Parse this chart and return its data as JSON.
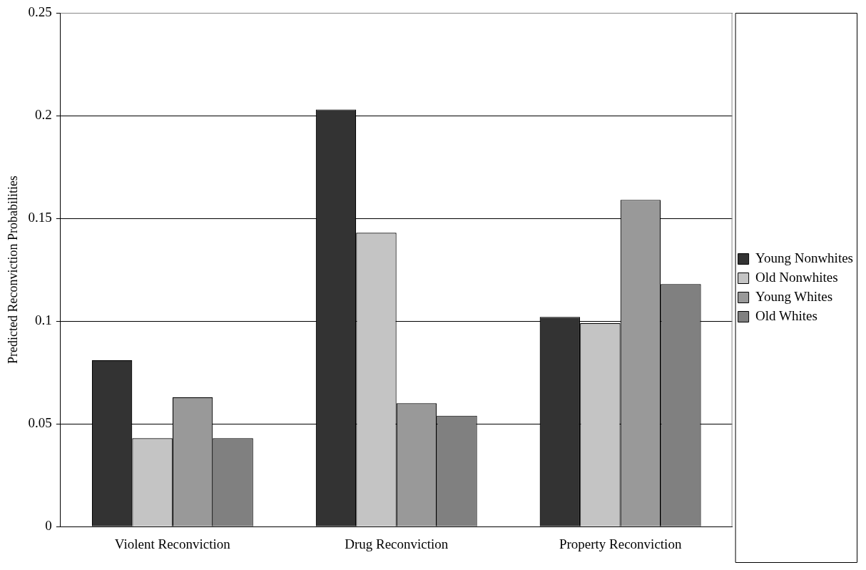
{
  "chart_data": {
    "type": "bar",
    "ylabel": "Predicted Reconviction Probabilities",
    "categories": [
      "Violent Reconviction",
      "Drug Reconviction",
      "Property Reconviction"
    ],
    "series": [
      {
        "name": "Young Nonwhites",
        "color": "#333333",
        "values": [
          0.081,
          0.203,
          0.102
        ]
      },
      {
        "name": "Old Nonwhites",
        "color": "#c4c4c4",
        "values": [
          0.043,
          0.143,
          0.099
        ]
      },
      {
        "name": "Young Whites",
        "color": "#999999",
        "values": [
          0.063,
          0.06,
          0.159
        ]
      },
      {
        "name": "Old Whites",
        "color": "#808080",
        "values": [
          0.043,
          0.054,
          0.118
        ]
      }
    ],
    "ylim": [
      0,
      0.25
    ],
    "yticks": [
      0,
      0.05,
      0.1,
      0.15,
      0.2,
      0.25
    ],
    "grid": "y",
    "legend": "right"
  }
}
